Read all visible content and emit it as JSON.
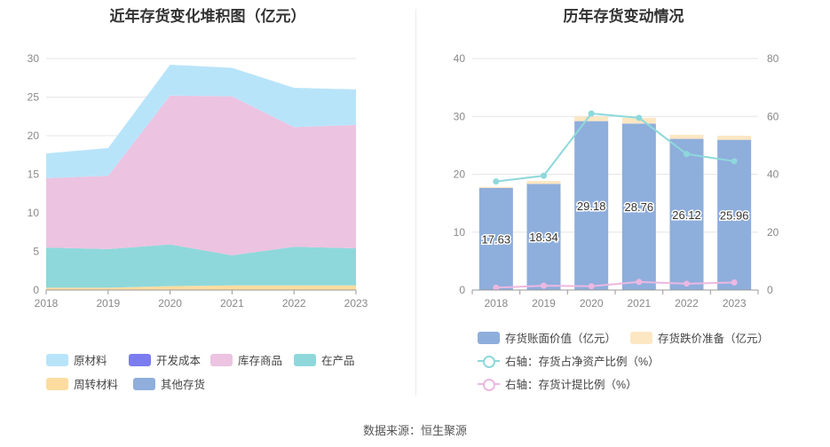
{
  "left_chart": {
    "title": "近年存货变化堆积图（亿元）",
    "legend": [
      {
        "name": "原材料",
        "color": "#b8e4fa"
      },
      {
        "name": "开发成本",
        "color": "#7b7cf0"
      },
      {
        "name": "库存商品",
        "color": "#ecc3e1"
      },
      {
        "name": "在产品",
        "color": "#8ed8db"
      },
      {
        "name": "周转材料",
        "color": "#fddca0"
      },
      {
        "name": "其他存货",
        "color": "#8faedc"
      }
    ]
  },
  "right_chart": {
    "title": "历年存货变动情况",
    "legend": {
      "bar1": {
        "name": "存货账面价值（亿元）",
        "color": "#8eaedc"
      },
      "bar2": {
        "name": "存货跌价准备（亿元）",
        "color": "#fde7c2"
      },
      "line1": {
        "name": "右轴：存货占净资产比例（%）",
        "color": "#8ed8db"
      },
      "line2": {
        "name": "右轴：存货计提比例（%）",
        "color": "#ecb8e1"
      }
    }
  },
  "source": "数据来源：恒生聚源",
  "chart_data": [
    {
      "type": "area",
      "stacked": true,
      "title": "近年存货变化堆积图（亿元）",
      "x": [
        "2018",
        "2019",
        "2020",
        "2021",
        "2022",
        "2023"
      ],
      "ylim": [
        0,
        30
      ],
      "yticks": [
        "0",
        "5",
        "10",
        "15",
        "20",
        "25",
        "30"
      ],
      "series": [
        {
          "name": "周转材料",
          "color": "#fddca0",
          "values": [
            0.3,
            0.3,
            0.5,
            0.6,
            0.6,
            0.6
          ]
        },
        {
          "name": "在产品",
          "color": "#8ed8db",
          "values": [
            5.2,
            5.0,
            5.4,
            3.9,
            5.0,
            4.8
          ]
        },
        {
          "name": "库存商品",
          "color": "#ecc3e1",
          "values": [
            9.0,
            9.5,
            19.3,
            20.6,
            15.5,
            16.0
          ]
        },
        {
          "name": "开发成本",
          "color": "#7b7cf0",
          "values": [
            0,
            0,
            0,
            0,
            0,
            0
          ]
        },
        {
          "name": "其他存货",
          "color": "#8faedc",
          "values": [
            0,
            0,
            0,
            0,
            0,
            0
          ]
        },
        {
          "name": "原材料",
          "color": "#b8e4fa",
          "values": [
            3.2,
            3.6,
            4.0,
            3.7,
            5.1,
            4.6
          ]
        }
      ],
      "grid": true
    },
    {
      "type": "bar",
      "title": "历年存货变动情况",
      "categories": [
        "2018",
        "2019",
        "2020",
        "2021",
        "2022",
        "2023"
      ],
      "ylim": [
        0,
        40
      ],
      "yticks": [
        "0",
        "10",
        "20",
        "30",
        "40"
      ],
      "y2lim": [
        0,
        80
      ],
      "y2ticks": [
        "0",
        "20",
        "40",
        "60",
        "80"
      ],
      "series": [
        {
          "name": "存货账面价值（亿元）",
          "type": "bar",
          "values": [
            17.63,
            18.34,
            29.18,
            28.76,
            26.12,
            25.96
          ],
          "labels": [
            "17.63",
            "18.34",
            "29.18",
            "28.76",
            "26.12",
            "25.96"
          ]
        },
        {
          "name": "存货跌价准备（亿元）",
          "type": "bar",
          "stacked": true,
          "values": [
            0.2,
            0.5,
            0.8,
            1.0,
            0.7,
            0.7
          ]
        },
        {
          "name": "右轴：存货占净资产比例（%）",
          "type": "line",
          "axis": "right",
          "values": [
            37.5,
            39.5,
            61.0,
            59.5,
            47.0,
            44.5
          ]
        },
        {
          "name": "右轴：存货计提比例（%）",
          "type": "line",
          "axis": "right",
          "values": [
            0.8,
            1.5,
            1.3,
            2.8,
            2.2,
            2.6
          ]
        }
      ],
      "grid": true
    }
  ]
}
